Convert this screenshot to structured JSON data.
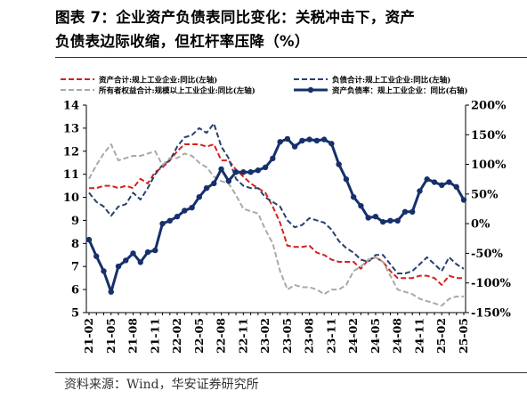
{
  "title": {
    "line1": "图表 7：企业资产负债表同比变化：关税冲击下，资产",
    "line2": "负债表边际收缩，但杠杆率压降（%）"
  },
  "source": "资料来源：Wind，华安证券研究所",
  "colors": {
    "assets": "#d42020",
    "liabilities": "#27416c",
    "equity": "#a9a9a9",
    "leverage": "#16306b"
  },
  "chart_data": {
    "type": "line",
    "x": [
      "21-02",
      "21-03",
      "21-04",
      "21-05",
      "21-06",
      "21-07",
      "21-08",
      "21-09",
      "21-10",
      "21-11",
      "21-12",
      "22-01",
      "22-02",
      "22-03",
      "22-04",
      "22-05",
      "22-06",
      "22-07",
      "22-08",
      "22-09",
      "22-10",
      "22-11",
      "22-12",
      "23-01",
      "23-02",
      "23-03",
      "23-04",
      "23-05",
      "23-06",
      "23-07",
      "23-08",
      "23-09",
      "23-10",
      "23-11",
      "23-12",
      "24-01",
      "24-02",
      "24-03",
      "24-04",
      "24-05",
      "24-06",
      "24-07",
      "24-08",
      "24-09",
      "24-10",
      "24-11",
      "24-12",
      "25-01",
      "25-02",
      "25-03",
      "25-04",
      "25-05"
    ],
    "x_tick_labels": [
      "21-02",
      "21-05",
      "21-08",
      "21-11",
      "22-02",
      "22-05",
      "22-08",
      "22-11",
      "23-02",
      "23-05",
      "23-08",
      "23-11",
      "24-02",
      "24-05",
      "24-08",
      "24-11",
      "25-02",
      "25-05"
    ],
    "left_axis": {
      "min": 5,
      "max": 14,
      "ticks": [
        5,
        6,
        7,
        8,
        9,
        10,
        11,
        12,
        13,
        14
      ]
    },
    "right_axis": {
      "min": -150,
      "max": 200,
      "ticks": [
        "-150%",
        "-100%",
        "-50%",
        "0%",
        "50%",
        "100%",
        "150%",
        "200%"
      ]
    },
    "legend": [
      "资产合计:规上工业企业:同比(左轴)",
      "负债合计:规上工业企业:同比(左轴)",
      "所有者权益合计:规模以上工业企业:同比(左轴)",
      "资产负债率：规上工业企业：同比(右轴)"
    ],
    "legend_position": "top",
    "series": [
      {
        "name": "资产合计:规上工业企业:同比(左轴)",
        "axis": "left",
        "style": "dashed",
        "color": "#d42020",
        "values": [
          10.4,
          10.4,
          10.5,
          10.5,
          10.4,
          10.5,
          10.4,
          10.8,
          10.6,
          11.1,
          11.3,
          11.6,
          12.0,
          12.3,
          12.3,
          12.3,
          12.2,
          12.3,
          11.6,
          11.6,
          11.2,
          10.9,
          10.6,
          10.4,
          10.2,
          9.6,
          8.9,
          7.9,
          7.85,
          7.85,
          7.9,
          7.6,
          7.5,
          7.3,
          7.2,
          7.2,
          7.2,
          6.9,
          7.3,
          7.4,
          7.2,
          6.8,
          6.5,
          6.5,
          6.5,
          6.6,
          6.6,
          6.5,
          6.2,
          6.6,
          6.5,
          6.5
        ]
      },
      {
        "name": "负债合计:规上工业企业:同比(左轴)",
        "axis": "left",
        "style": "dashed",
        "color": "#27416c",
        "values": [
          10.2,
          9.8,
          9.6,
          9.2,
          9.6,
          9.7,
          10.2,
          9.9,
          10.4,
          11.0,
          11.4,
          11.6,
          12.2,
          12.6,
          12.7,
          13.0,
          12.8,
          13.2,
          12.2,
          11.7,
          10.8,
          10.5,
          10.4,
          10.4,
          10.0,
          9.8,
          9.6,
          9.0,
          8.7,
          8.8,
          9.1,
          9.0,
          8.9,
          8.6,
          8.1,
          7.8,
          7.6,
          7.3,
          7.2,
          7.5,
          7.5,
          7.1,
          6.7,
          6.7,
          6.8,
          7.1,
          7.4,
          7.1,
          6.8,
          7.4,
          7.1,
          6.9
        ]
      },
      {
        "name": "所有者权益合计:规模以上工业企业:同比(左轴)",
        "axis": "left",
        "style": "dashed",
        "color": "#a9a9a9",
        "values": [
          10.8,
          11.4,
          11.9,
          12.3,
          11.6,
          11.7,
          11.8,
          11.8,
          11.9,
          12.0,
          11.4,
          11.7,
          11.7,
          11.9,
          11.8,
          11.5,
          11.3,
          10.9,
          10.7,
          10.6,
          10.1,
          9.5,
          9.4,
          9.3,
          8.6,
          8.0,
          6.8,
          6.0,
          6.2,
          6.1,
          6.1,
          6.0,
          5.8,
          6.0,
          6.0,
          6.2,
          6.8,
          7.0,
          7.3,
          7.4,
          7.2,
          6.6,
          6.0,
          5.9,
          5.8,
          5.6,
          5.5,
          5.4,
          5.3,
          5.6,
          5.7,
          5.7
        ]
      },
      {
        "name": "资产负债率：规上工业企业：同比(右轴)",
        "axis": "right",
        "style": "solid-markers",
        "color": "#16306b",
        "values": [
          -27,
          -55,
          -80,
          -115,
          -72,
          -62,
          -50,
          -65,
          -48,
          -45,
          0,
          5,
          12,
          22,
          27,
          45,
          60,
          68,
          92,
          72,
          87,
          87,
          87,
          90,
          95,
          110,
          138,
          143,
          130,
          140,
          142,
          140,
          142,
          135,
          100,
          75,
          45,
          30,
          10,
          12,
          3,
          5,
          5,
          20,
          20,
          55,
          75,
          70,
          65,
          70,
          62,
          40
        ]
      }
    ]
  }
}
